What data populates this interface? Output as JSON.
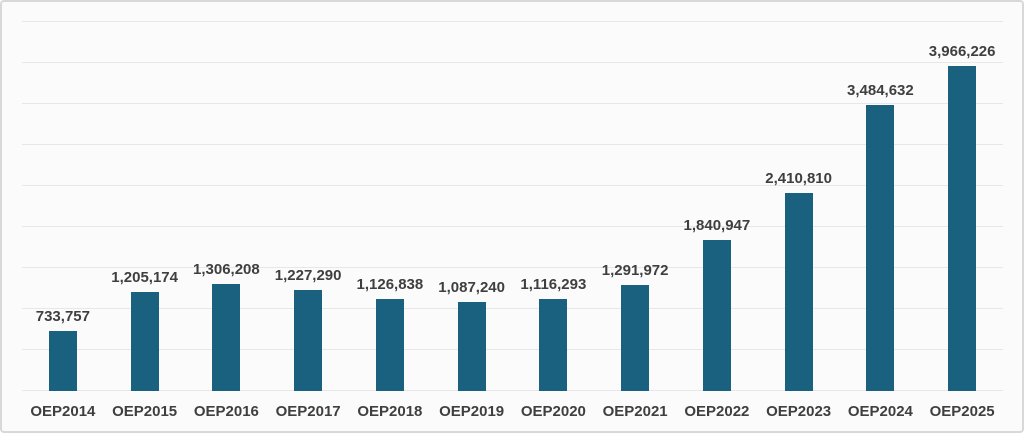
{
  "chart_data": {
    "type": "bar",
    "categories": [
      "OEP2014",
      "OEP2015",
      "OEP2016",
      "OEP2017",
      "OEP2018",
      "OEP2019",
      "OEP2020",
      "OEP2021",
      "OEP2022",
      "OEP2023",
      "OEP2024",
      "OEP2025"
    ],
    "values": [
      733757,
      1205174,
      1306208,
      1227290,
      1126838,
      1087240,
      1116293,
      1291972,
      1840947,
      2410810,
      3484632,
      3966226
    ],
    "value_labels": [
      "733,757",
      "1,205,174",
      "1,306,208",
      "1,227,290",
      "1,126,838",
      "1,087,240",
      "1,116,293",
      "1,291,972",
      "1,840,947",
      "2,410,810",
      "3,484,632",
      "3,966,226"
    ],
    "title": "",
    "xlabel": "",
    "ylabel": "",
    "ylim": [
      0,
      4500000
    ],
    "gridline_step": 500000,
    "grid": true,
    "legend": false,
    "y_tick_labels_visible": false,
    "colors": {
      "bar": "#1A607F",
      "gridline": "#E7E7E7",
      "label_text": "#3F3F3F",
      "background": "#FBFBFB",
      "border": "#D8D8D8"
    }
  }
}
